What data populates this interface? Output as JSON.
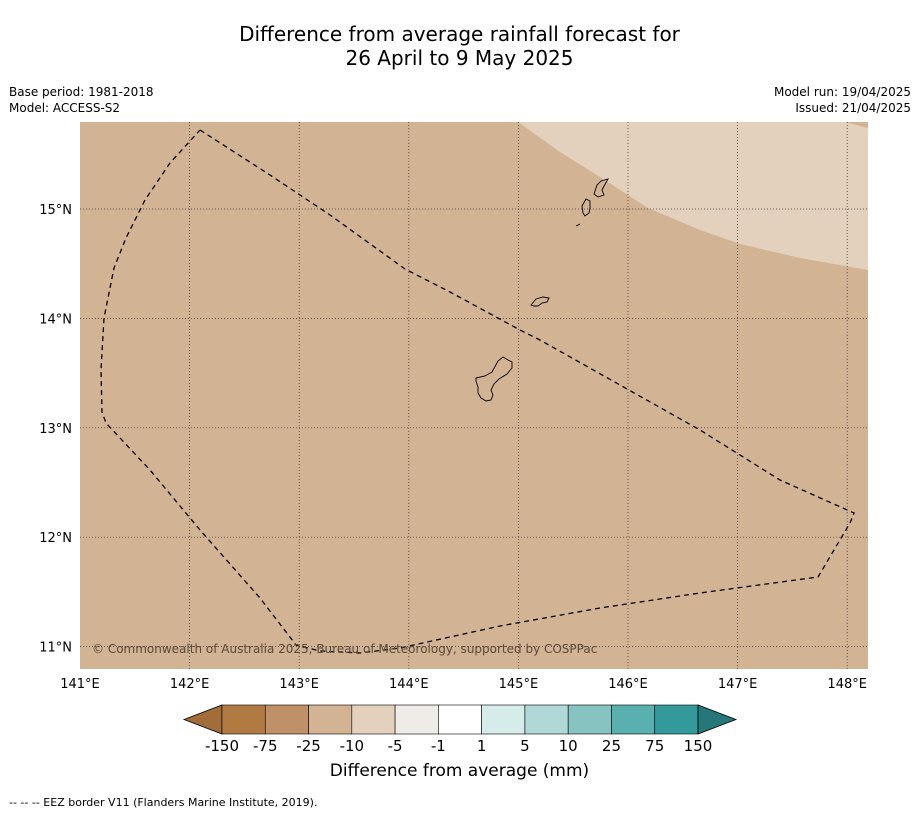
{
  "title": {
    "line1": "Difference from average rainfall forecast for",
    "line2": "26 April to 9 May 2025"
  },
  "meta": {
    "base_period": "Base period: 1981-2018",
    "model": "Model: ACCESS-S2",
    "model_run": "Model run: 19/04/2025",
    "issued": "Issued: 21/04/2025"
  },
  "map": {
    "lon_range": [
      141.0,
      148.2
    ],
    "lat_range": [
      10.8,
      15.8
    ],
    "lon_ticks": [
      "141°E",
      "142°E",
      "143°E",
      "144°E",
      "145°E",
      "146°E",
      "147°E",
      "148°E"
    ],
    "lat_ticks": [
      "15°N",
      "14°N",
      "13°N",
      "12°N",
      "11°N"
    ],
    "copyright": "© Commonwealth of Australia 2025, Bureau of Meteorology, supported by COSPPac",
    "colors": {
      "base_fill": "#d2b394",
      "light_fill": "#e3d0bd",
      "grid": "#333333",
      "eez_line": "#000000"
    }
  },
  "colorbar": {
    "tick_labels": [
      "-150",
      "-75",
      "-25",
      "-10",
      "-5",
      "-1",
      "1",
      "5",
      "10",
      "25",
      "75",
      "150"
    ],
    "colors": [
      "#a36d3a",
      "#b17a42",
      "#c09168",
      "#d2b394",
      "#e3d0bd",
      "#efebe7",
      "#ffffff",
      "#d6eceb",
      "#afd8d6",
      "#87c3c1",
      "#5aafaf",
      "#33999a",
      "#26777a"
    ],
    "label": "Difference from average (mm)"
  },
  "footnote": "--  --  -- EEZ border V11 (Flanders Marine Institute, 2019)."
}
